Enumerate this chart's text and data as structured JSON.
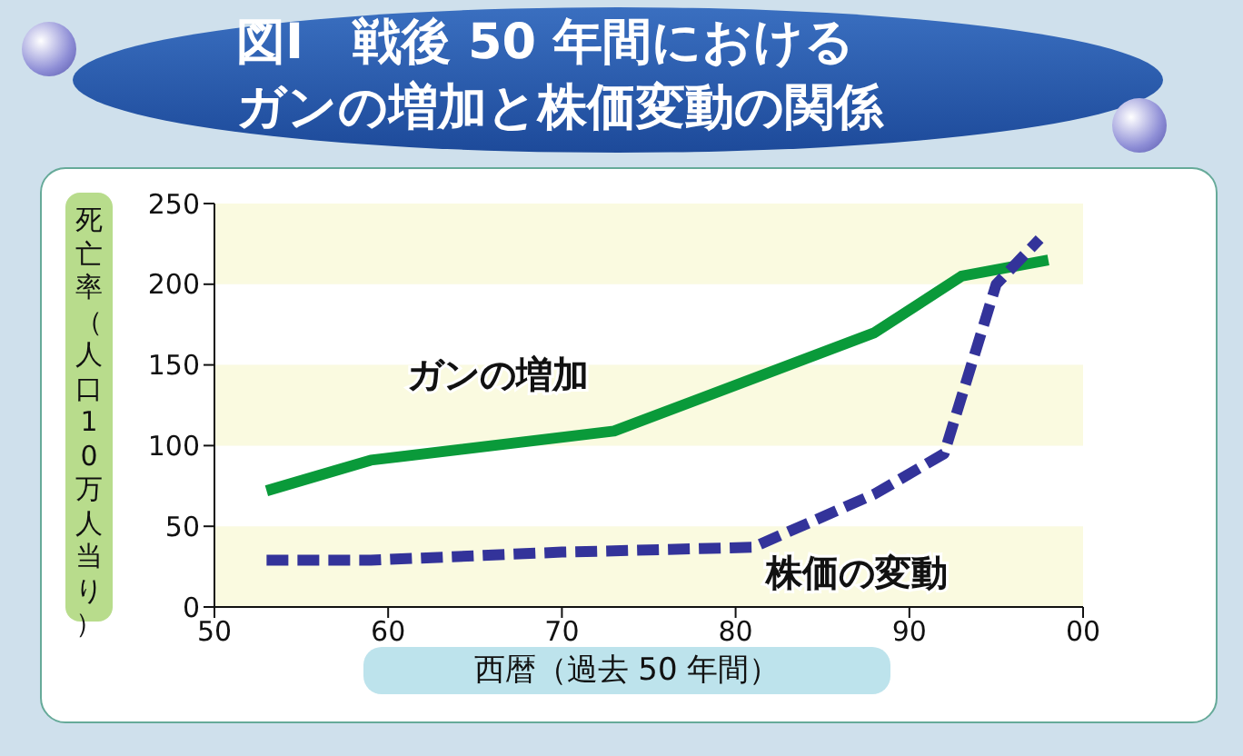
{
  "chart_data": {
    "type": "line",
    "title": "図Ⅰ　戦後 50 年間におけるガンの増加と株価変動の関係",
    "xlabel": "西暦（過去 50 年間）",
    "ylabel": "死亡率（人口10万人当り）",
    "xlim": [
      "1950",
      "2000"
    ],
    "xticks": [
      {
        "value": "1950",
        "label": "50"
      },
      {
        "value": "1960",
        "label": "60"
      },
      {
        "value": "1970",
        "label": "70"
      },
      {
        "value": "1980",
        "label": "80"
      },
      {
        "value": "1990",
        "label": "90"
      },
      {
        "value": "2000",
        "label": "00"
      }
    ],
    "ylim": [
      0,
      250
    ],
    "yticks": [
      0,
      50,
      100,
      150,
      200,
      250
    ],
    "marker": "none",
    "bands": [
      {
        "axis": "y",
        "from": 0,
        "to": 50,
        "color": "#fafae0"
      },
      {
        "axis": "y",
        "from": 100,
        "to": 150,
        "color": "#fafae0"
      },
      {
        "axis": "y",
        "from": 200,
        "to": 250,
        "color": "#fafae0"
      }
    ],
    "series": [
      {
        "name": "ガンの増加",
        "color": "#0a9a3a",
        "line_style": "solid",
        "x": [
          "1953",
          "1959",
          "1973",
          "1988",
          "1993",
          "1998"
        ],
        "values": [
          72,
          91,
          109,
          170,
          205,
          215
        ]
      },
      {
        "name": "株価の変動",
        "color": "#33339a",
        "line_style": "dashed",
        "x": [
          "1953",
          "1959",
          "1970",
          "1981",
          "1988",
          "1992",
          "1995",
          "1997-07"
        ],
        "values": [
          29,
          29,
          34,
          37,
          70,
          95,
          200,
          228
        ]
      }
    ]
  }
}
